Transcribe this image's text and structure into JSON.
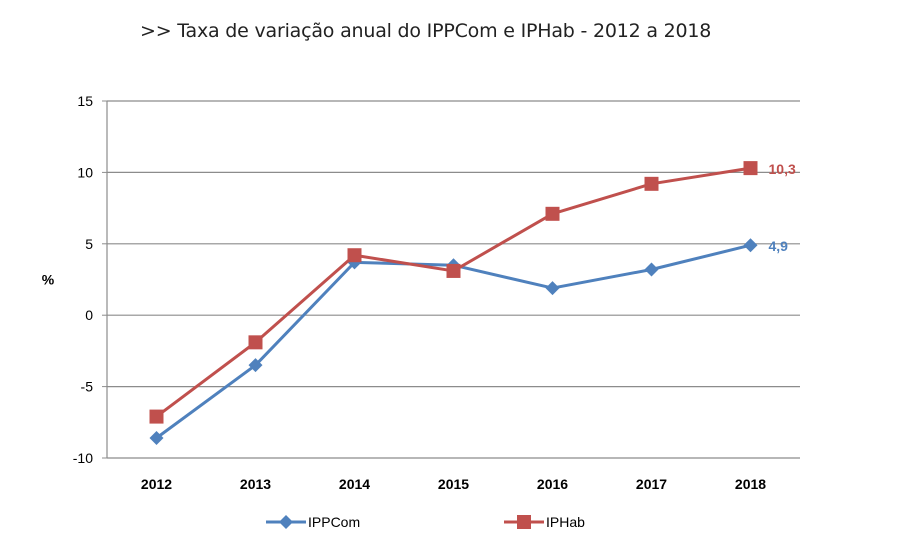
{
  "title": ">> Taxa de variação anual do IPPCom e IPHab - 2012 a 2018",
  "chart_data": {
    "type": "line",
    "title": ">> Taxa de variação anual do IPPCom e IPHab - 2012 a 2018",
    "xlabel": "",
    "ylabel": "%",
    "categories": [
      "2012",
      "2013",
      "2014",
      "2015",
      "2016",
      "2017",
      "2018"
    ],
    "ylim": [
      -10,
      15
    ],
    "yticks": [
      -10,
      -5,
      0,
      5,
      10,
      15
    ],
    "grid": true,
    "legend_position": "bottom",
    "series": [
      {
        "name": "IPPCom",
        "color": "#4F81BD",
        "marker": "diamond",
        "values": [
          -8.6,
          -3.5,
          3.7,
          3.5,
          1.9,
          3.2,
          4.9
        ],
        "end_label": "4,9"
      },
      {
        "name": "IPHab",
        "color": "#C0504D",
        "marker": "square",
        "values": [
          -7.1,
          -1.9,
          4.2,
          3.1,
          7.1,
          9.2,
          10.3
        ],
        "end_label": "10,3"
      }
    ]
  }
}
